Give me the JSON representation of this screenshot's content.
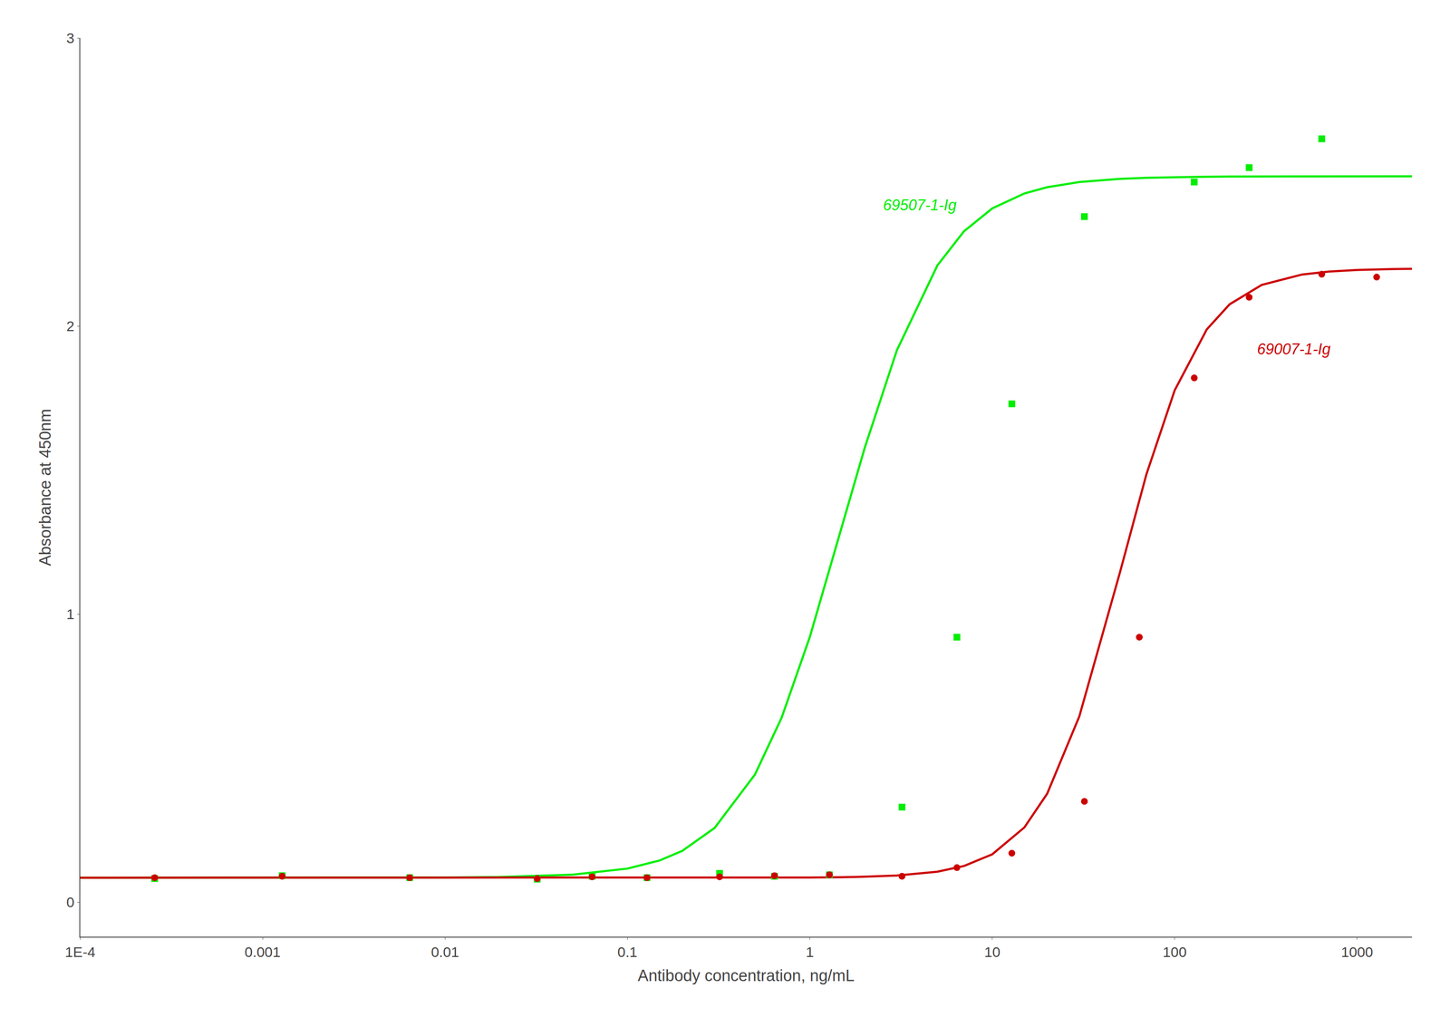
{
  "chart_data": {
    "type": "scatter",
    "xlabel": "Antibody concentration, ng/mL",
    "ylabel": "Absorbance at 450nm",
    "log": "x",
    "xlim": [
      0.0001,
      2000
    ],
    "ylim": [
      -0.12,
      3.0
    ],
    "xticks": [
      {
        "value": 0.0001,
        "label": "1E-4"
      },
      0.001,
      0.01,
      0.1,
      1,
      10,
      100,
      1000
    ],
    "yticks": [
      0,
      1,
      2,
      3
    ],
    "grid": false,
    "series": [
      {
        "type": "line",
        "line_style": "solid",
        "color": "#00EE00",
        "x": [
          0.0001,
          0.0002,
          0.0005,
          0.001,
          0.002,
          0.005,
          0.01,
          0.02,
          0.05,
          0.1,
          0.15,
          0.2,
          0.3,
          0.5,
          0.7,
          1,
          1.5,
          2,
          3,
          5,
          7,
          10,
          15,
          20,
          30,
          50,
          70,
          100,
          150,
          200,
          300,
          500,
          700,
          1000,
          1500,
          2000
        ],
        "values": [
          0.085,
          0.085,
          0.085,
          0.085,
          0.0851,
          0.0853,
          0.0858,
          0.0874,
          0.0955,
          0.1166,
          0.1447,
          0.1782,
          0.2573,
          0.4431,
          0.6402,
          0.9209,
          1.3025,
          1.5779,
          1.916,
          2.2104,
          2.3292,
          2.4084,
          2.4603,
          2.482,
          2.5,
          2.5111,
          2.5148,
          2.5171,
          2.5185,
          2.519,
          2.5195,
          2.5198,
          2.5199,
          2.5199,
          2.52,
          2.52
        ]
      },
      {
        "type": "line",
        "line_style": "solid",
        "color": "#CC0000",
        "x": [
          0.0001,
          0.0002,
          0.0005,
          0.001,
          0.002,
          0.005,
          0.01,
          0.02,
          0.05,
          0.1,
          0.15,
          0.2,
          0.3,
          0.5,
          0.7,
          1,
          1.5,
          2,
          3,
          5,
          7,
          10,
          15,
          20,
          30,
          50,
          70,
          100,
          150,
          200,
          300,
          500,
          700,
          1000,
          1500,
          2000
        ],
        "values": [
          0.085,
          0.085,
          0.085,
          0.085,
          0.085,
          0.085,
          0.085,
          0.085,
          0.085,
          0.085,
          0.085,
          0.085,
          0.0851,
          0.0852,
          0.0854,
          0.0858,
          0.0869,
          0.0884,
          0.0926,
          0.1059,
          0.1257,
          0.1663,
          0.2596,
          0.3767,
          0.6448,
          1.1425,
          1.4855,
          1.777,
          1.9885,
          2.0756,
          2.1428,
          2.1791,
          2.1893,
          2.1947,
          2.1977,
          2.1987
        ]
      },
      {
        "type": "scatter",
        "marker": "square",
        "color": "#00EE00",
        "x": [
          0.000256,
          0.00128,
          0.0064,
          0.032,
          0.064,
          0.128,
          0.32,
          0.64,
          1.28,
          3.2,
          6.4,
          12.8,
          32,
          128,
          256,
          640
        ],
        "values": [
          0.082,
          0.092,
          0.085,
          0.08,
          0.09,
          0.085,
          0.1,
          0.09,
          0.095,
          0.33,
          0.92,
          1.73,
          2.38,
          2.5,
          2.55,
          2.65
        ]
      },
      {
        "type": "scatter",
        "marker": "circle",
        "color": "#CC0000",
        "x": [
          0.000256,
          0.00128,
          0.0064,
          0.032,
          0.064,
          0.128,
          0.32,
          0.64,
          1.28,
          3.2,
          6.4,
          12.8,
          32,
          64,
          128,
          256,
          640,
          1280
        ],
        "values": [
          0.085,
          0.09,
          0.085,
          0.082,
          0.088,
          0.085,
          0.088,
          0.092,
          0.095,
          0.09,
          0.12,
          0.17,
          0.35,
          0.92,
          1.82,
          2.1,
          2.18,
          2.17
        ]
      }
    ],
    "annotations": [
      {
        "text": "69507-1-Ig",
        "x": 2.5,
        "y": 2.42,
        "color": "#00EE00"
      },
      {
        "text": "69007-1-Ig",
        "x": 280,
        "y": 1.92,
        "color": "#CC0000"
      }
    ]
  }
}
